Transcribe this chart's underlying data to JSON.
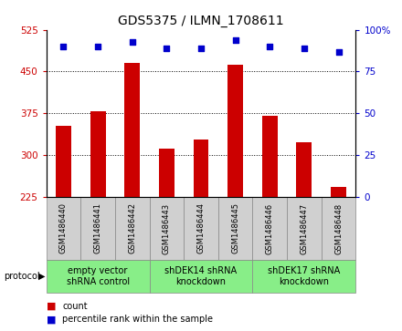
{
  "title": "GDS5375 / ILMN_1708611",
  "samples": [
    "GSM1486440",
    "GSM1486441",
    "GSM1486442",
    "GSM1486443",
    "GSM1486444",
    "GSM1486445",
    "GSM1486446",
    "GSM1486447",
    "GSM1486448"
  ],
  "counts": [
    352,
    378,
    465,
    312,
    328,
    462,
    370,
    323,
    243
  ],
  "percentiles": [
    90,
    90,
    93,
    89,
    89,
    94,
    90,
    89,
    87
  ],
  "ylim_left": [
    225,
    525
  ],
  "ylim_right": [
    0,
    100
  ],
  "yticks_left": [
    225,
    300,
    375,
    450,
    525
  ],
  "yticks_right": [
    0,
    25,
    50,
    75,
    100
  ],
  "bar_color": "#cc0000",
  "dot_color": "#0000cc",
  "protocol_groups": [
    {
      "label": "empty vector\nshRNA control",
      "indices": [
        0,
        1,
        2
      ]
    },
    {
      "label": "shDEK14 shRNA\nknockdown",
      "indices": [
        3,
        4,
        5
      ]
    },
    {
      "label": "shDEK17 shRNA\nknockdown",
      "indices": [
        6,
        7,
        8
      ]
    }
  ],
  "protocol_label": "protocol",
  "legend_count_label": "count",
  "legend_percentile_label": "percentile rank within the sample",
  "tick_color_left": "#cc0000",
  "tick_color_right": "#0000cc",
  "grid_values": [
    300,
    375,
    450
  ],
  "title_fontsize": 10,
  "axis_fontsize": 7.5,
  "sample_fontsize": 6,
  "protocol_fontsize": 7,
  "legend_fontsize": 7,
  "bar_width": 0.45,
  "sample_box_color": "#d0d0d0",
  "protocol_box_color": "#88ee88",
  "box_edge_color": "#888888"
}
